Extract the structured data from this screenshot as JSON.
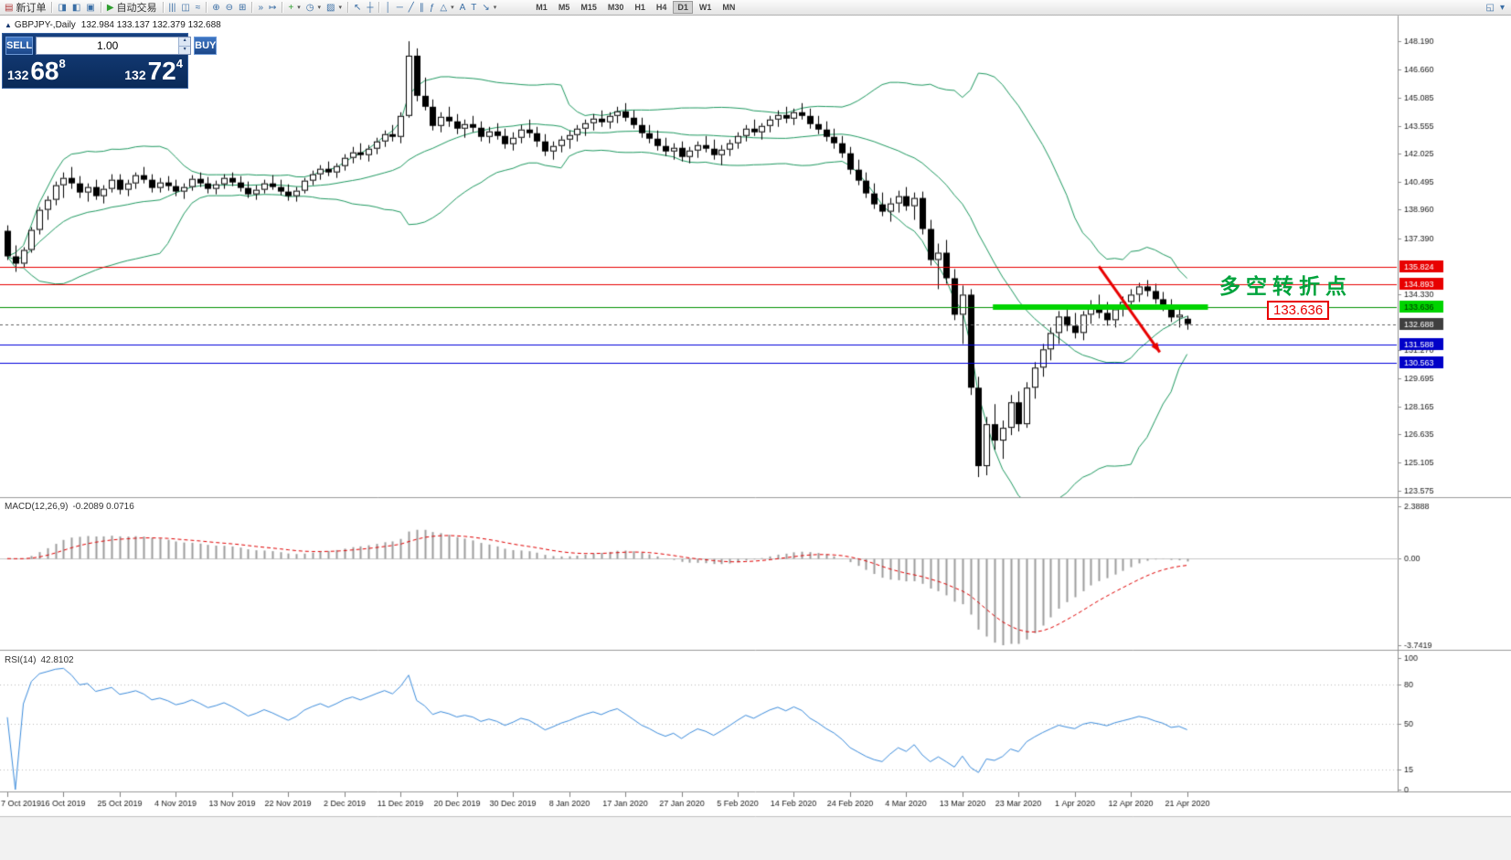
{
  "toolbar": {
    "groups": [
      [
        {
          "name": "new-order-button",
          "glyph": "▤",
          "color": "#b03838",
          "label": "新订单"
        }
      ],
      [
        {
          "name": "market-watch-button",
          "glyph": "◨"
        },
        {
          "name": "data-window-button",
          "glyph": "◧"
        },
        {
          "name": "terminal-button",
          "glyph": "▣"
        }
      ],
      [
        {
          "name": "autotrading-button",
          "glyph": "▶",
          "color": "#2f9e2f",
          "label": "自动交易"
        }
      ],
      [
        {
          "name": "chart-bars-button",
          "glyph": "|||"
        },
        {
          "name": "chart-candles-button",
          "glyph": "◫"
        },
        {
          "name": "chart-line-button",
          "glyph": "≈"
        }
      ],
      [
        {
          "name": "zoom-in-button",
          "glyph": "⊕"
        },
        {
          "name": "zoom-out-button",
          "glyph": "⊖"
        },
        {
          "name": "tile-windows-button",
          "glyph": "⊞"
        }
      ],
      [
        {
          "name": "auto-scroll-button",
          "glyph": "»"
        },
        {
          "name": "chart-shift-button",
          "glyph": "↦"
        }
      ],
      [
        {
          "name": "indicators-button",
          "glyph": "+",
          "color": "#2f9e2f",
          "dropdown": true
        },
        {
          "name": "periods-button",
          "glyph": "◷",
          "dropdown": true
        },
        {
          "name": "templates-button",
          "glyph": "▨",
          "dropdown": true
        }
      ],
      [
        {
          "name": "cursor-button",
          "glyph": "↖"
        },
        {
          "name": "crosshair-button",
          "glyph": "┼"
        }
      ],
      [
        {
          "name": "vertical-line-button",
          "glyph": "│"
        },
        {
          "name": "horizontal-line-button",
          "glyph": "─"
        },
        {
          "name": "trendline-button",
          "glyph": "╱"
        },
        {
          "name": "channel-button",
          "glyph": "∥"
        },
        {
          "name": "fibonacci-button",
          "glyph": "ƒ"
        },
        {
          "name": "shapes-button",
          "glyph": "△",
          "dropdown": true
        },
        {
          "name": "text-button",
          "glyph": "A"
        },
        {
          "name": "label-button",
          "glyph": "T"
        },
        {
          "name": "arrows-button",
          "glyph": "↘",
          "dropdown": true
        }
      ]
    ],
    "timeframes": [
      "M1",
      "M5",
      "M15",
      "M30",
      "H1",
      "H4",
      "D1",
      "W1",
      "MN"
    ],
    "active_timeframe": "D1",
    "right_items": [
      {
        "name": "chart-window-button",
        "glyph": "◱"
      },
      {
        "name": "toolbar-more-button",
        "glyph": "▾"
      }
    ]
  },
  "chart": {
    "symbol_title": "GBPJPY-,Daily",
    "ohlc_text": "132.984 133.137 132.379 132.688"
  },
  "trade_panel": {
    "sell_label": "SELL",
    "buy_label": "BUY",
    "volume": "1.00",
    "bid": {
      "prefix": "132",
      "big": "68",
      "sup": "8"
    },
    "ask": {
      "prefix": "132",
      "big": "72",
      "sup": "4"
    }
  },
  "annotations": {
    "turning_point_text": "多空转折点",
    "support_price_label": "133.636",
    "arrow": {
      "from_bar": 136,
      "from_price": 135.85,
      "to_bar": 143.6,
      "to_price": 131.15,
      "color": "#e80000"
    }
  },
  "chart_data": {
    "type": "candlestick",
    "symbol": "GBPJPY-",
    "timeframe": "Daily",
    "title": "GBPJPY-,Daily 132.984 133.137 132.379 132.688",
    "bars_per_label": 7,
    "x_labels": [
      "7 Oct 2019",
      "16 Oct 2019",
      "25 Oct 2019",
      "4 Nov 2019",
      "13 Nov 2019",
      "22 Nov 2019",
      "2 Dec 2019",
      "11 Dec 2019",
      "20 Dec 2019",
      "30 Dec 2019",
      "8 Jan 2020",
      "17 Jan 2020",
      "27 Jan 2020",
      "5 Feb 2020",
      "14 Feb 2020",
      "24 Feb 2020",
      "4 Mar 2020",
      "13 Mar 2020",
      "23 Mar 2020",
      "1 Apr 2020",
      "12 Apr 2020",
      "21 Apr 2020"
    ],
    "candles": [
      [
        137.8,
        138.1,
        136.2,
        136.4
      ],
      [
        136.4,
        137.0,
        135.55,
        136.0
      ],
      [
        136.0,
        136.9,
        135.8,
        136.75
      ],
      [
        136.75,
        138.0,
        136.6,
        137.85
      ],
      [
        137.85,
        139.1,
        137.6,
        138.95
      ],
      [
        138.95,
        139.7,
        138.4,
        139.5
      ],
      [
        139.5,
        140.5,
        139.2,
        140.3
      ],
      [
        140.3,
        141.0,
        139.6,
        140.7
      ],
      [
        140.7,
        141.3,
        140.1,
        140.4
      ],
      [
        140.4,
        140.8,
        139.6,
        139.9
      ],
      [
        139.9,
        140.4,
        139.4,
        140.2
      ],
      [
        140.2,
        140.6,
        139.5,
        139.7
      ],
      [
        139.7,
        140.3,
        139.3,
        140.1
      ],
      [
        140.1,
        140.9,
        139.9,
        140.6
      ],
      [
        140.6,
        140.9,
        139.8,
        140.05
      ],
      [
        140.05,
        140.6,
        139.7,
        140.4
      ],
      [
        140.4,
        141.0,
        140.1,
        140.85
      ],
      [
        140.85,
        141.3,
        140.4,
        140.6
      ],
      [
        140.6,
        140.9,
        139.9,
        140.15
      ],
      [
        140.15,
        140.7,
        139.9,
        140.45
      ],
      [
        140.45,
        140.8,
        140.0,
        140.25
      ],
      [
        140.25,
        140.6,
        139.7,
        139.95
      ],
      [
        139.95,
        140.4,
        139.55,
        140.2
      ],
      [
        140.2,
        140.85,
        140.0,
        140.65
      ],
      [
        140.65,
        141.0,
        140.2,
        140.4
      ],
      [
        140.4,
        140.75,
        139.85,
        140.1
      ],
      [
        140.1,
        140.55,
        139.8,
        140.35
      ],
      [
        140.35,
        140.9,
        140.1,
        140.7
      ],
      [
        140.7,
        141.0,
        140.25,
        140.45
      ],
      [
        140.45,
        140.8,
        139.95,
        140.15
      ],
      [
        140.15,
        140.5,
        139.6,
        139.8
      ],
      [
        139.8,
        140.3,
        139.5,
        140.05
      ],
      [
        140.05,
        140.6,
        139.85,
        140.4
      ],
      [
        140.4,
        140.85,
        140.05,
        140.2
      ],
      [
        140.2,
        140.6,
        139.75,
        139.95
      ],
      [
        139.95,
        140.35,
        139.45,
        139.7
      ],
      [
        139.7,
        140.2,
        139.4,
        140.0
      ],
      [
        140.0,
        140.7,
        139.85,
        140.55
      ],
      [
        140.55,
        141.1,
        140.3,
        140.9
      ],
      [
        140.9,
        141.4,
        140.6,
        141.2
      ],
      [
        141.2,
        141.6,
        140.8,
        141.0
      ],
      [
        141.0,
        141.5,
        140.7,
        141.35
      ],
      [
        141.35,
        142.0,
        141.1,
        141.8
      ],
      [
        141.8,
        142.4,
        141.5,
        142.1
      ],
      [
        142.1,
        142.6,
        141.7,
        141.95
      ],
      [
        141.95,
        142.5,
        141.6,
        142.3
      ],
      [
        142.3,
        142.9,
        142.0,
        142.7
      ],
      [
        142.7,
        143.3,
        142.4,
        143.1
      ],
      [
        143.1,
        143.6,
        142.7,
        142.95
      ],
      [
        142.95,
        144.3,
        142.6,
        144.1
      ],
      [
        144.1,
        148.19,
        144.0,
        147.4
      ],
      [
        147.4,
        147.8,
        144.9,
        145.2
      ],
      [
        145.2,
        146.2,
        144.4,
        144.6
      ],
      [
        144.6,
        145.0,
        143.3,
        143.55
      ],
      [
        143.55,
        144.3,
        143.2,
        144.05
      ],
      [
        144.05,
        144.6,
        143.5,
        143.8
      ],
      [
        143.8,
        144.2,
        143.1,
        143.4
      ],
      [
        143.4,
        143.9,
        142.9,
        143.65
      ],
      [
        143.65,
        144.1,
        143.2,
        143.45
      ],
      [
        143.45,
        143.8,
        142.7,
        142.95
      ],
      [
        142.95,
        143.5,
        142.6,
        143.25
      ],
      [
        143.25,
        143.7,
        142.8,
        143.0
      ],
      [
        143.0,
        143.4,
        142.3,
        142.55
      ],
      [
        142.55,
        143.2,
        142.2,
        142.9
      ],
      [
        142.9,
        143.6,
        142.6,
        143.35
      ],
      [
        143.35,
        143.9,
        142.9,
        143.15
      ],
      [
        143.15,
        143.5,
        142.4,
        142.7
      ],
      [
        142.7,
        143.1,
        141.9,
        142.15
      ],
      [
        142.15,
        142.7,
        141.7,
        142.45
      ],
      [
        142.45,
        143.0,
        142.1,
        142.8
      ],
      [
        142.8,
        143.3,
        142.3,
        143.05
      ],
      [
        143.05,
        143.6,
        142.7,
        143.4
      ],
      [
        143.4,
        143.9,
        143.0,
        143.7
      ],
      [
        143.7,
        144.2,
        143.3,
        143.95
      ],
      [
        143.95,
        144.4,
        143.5,
        143.75
      ],
      [
        143.75,
        144.3,
        143.4,
        144.1
      ],
      [
        144.1,
        144.6,
        143.7,
        144.35
      ],
      [
        144.35,
        144.8,
        143.8,
        144.0
      ],
      [
        144.0,
        144.4,
        143.4,
        143.6
      ],
      [
        143.6,
        144.0,
        142.9,
        143.15
      ],
      [
        143.15,
        143.6,
        142.6,
        142.85
      ],
      [
        142.85,
        143.3,
        142.2,
        142.45
      ],
      [
        142.45,
        142.9,
        141.9,
        142.15
      ],
      [
        142.15,
        142.6,
        141.7,
        142.35
      ],
      [
        142.35,
        142.7,
        141.6,
        141.85
      ],
      [
        141.85,
        142.4,
        141.5,
        142.2
      ],
      [
        142.2,
        142.7,
        141.8,
        142.5
      ],
      [
        142.5,
        143.0,
        142.1,
        142.3
      ],
      [
        142.3,
        142.8,
        141.7,
        141.95
      ],
      [
        141.95,
        142.5,
        141.4,
        142.25
      ],
      [
        142.25,
        142.8,
        141.9,
        142.6
      ],
      [
        142.6,
        143.2,
        142.3,
        143.0
      ],
      [
        143.0,
        143.6,
        142.7,
        143.4
      ],
      [
        143.4,
        143.9,
        143.0,
        143.2
      ],
      [
        143.2,
        143.7,
        142.8,
        143.55
      ],
      [
        143.55,
        144.1,
        143.2,
        143.9
      ],
      [
        143.9,
        144.4,
        143.5,
        144.15
      ],
      [
        144.15,
        144.6,
        143.7,
        143.95
      ],
      [
        143.95,
        144.5,
        143.6,
        144.3
      ],
      [
        144.3,
        144.8,
        143.9,
        144.1
      ],
      [
        144.1,
        144.5,
        143.4,
        143.65
      ],
      [
        143.65,
        144.1,
        143.1,
        143.35
      ],
      [
        143.35,
        143.8,
        142.7,
        142.95
      ],
      [
        142.95,
        143.4,
        142.3,
        142.6
      ],
      [
        142.6,
        143.0,
        141.8,
        142.05
      ],
      [
        142.05,
        142.4,
        140.9,
        141.15
      ],
      [
        141.15,
        141.7,
        140.3,
        140.55
      ],
      [
        140.55,
        141.0,
        139.6,
        139.85
      ],
      [
        139.85,
        140.4,
        139.0,
        139.25
      ],
      [
        139.25,
        139.9,
        138.6,
        138.85
      ],
      [
        138.85,
        139.6,
        138.3,
        139.3
      ],
      [
        139.3,
        140.0,
        138.8,
        139.7
      ],
      [
        139.7,
        140.2,
        138.9,
        139.15
      ],
      [
        139.15,
        139.9,
        138.4,
        139.6
      ],
      [
        139.6,
        139.95,
        137.6,
        137.9
      ],
      [
        137.9,
        138.4,
        135.9,
        136.2
      ],
      [
        136.2,
        137.1,
        134.6,
        136.6
      ],
      [
        136.6,
        137.3,
        134.9,
        135.2
      ],
      [
        135.2,
        135.7,
        132.9,
        133.2
      ],
      [
        133.2,
        134.8,
        131.6,
        134.3
      ],
      [
        134.3,
        134.6,
        128.8,
        129.2
      ],
      [
        129.2,
        129.8,
        124.3,
        124.9
      ],
      [
        124.9,
        127.6,
        124.4,
        127.2
      ],
      [
        127.2,
        128.3,
        125.8,
        126.3
      ],
      [
        126.3,
        127.4,
        125.3,
        127.0
      ],
      [
        127.0,
        128.8,
        126.6,
        128.4
      ],
      [
        128.4,
        129.0,
        126.8,
        127.2
      ],
      [
        127.2,
        129.5,
        127.0,
        129.2
      ],
      [
        129.2,
        130.6,
        128.6,
        130.3
      ],
      [
        130.3,
        131.6,
        129.8,
        131.3
      ],
      [
        131.3,
        132.5,
        130.7,
        132.2
      ],
      [
        132.2,
        133.4,
        131.6,
        133.1
      ],
      [
        133.1,
        133.7,
        132.3,
        132.6
      ],
      [
        132.6,
        133.3,
        131.9,
        132.2
      ],
      [
        132.2,
        133.4,
        131.8,
        133.2
      ],
      [
        133.2,
        134.0,
        132.7,
        133.6
      ],
      [
        133.6,
        134.3,
        133.0,
        133.3
      ],
      [
        133.3,
        133.9,
        132.6,
        132.9
      ],
      [
        132.9,
        133.7,
        132.5,
        133.5
      ],
      [
        133.5,
        134.2,
        133.1,
        133.9
      ],
      [
        133.9,
        134.6,
        133.4,
        134.3
      ],
      [
        134.3,
        134.95,
        133.9,
        134.75
      ],
      [
        134.75,
        135.1,
        134.2,
        134.5
      ],
      [
        134.5,
        134.9,
        133.8,
        134.05
      ],
      [
        134.05,
        134.45,
        133.4,
        133.7
      ],
      [
        133.7,
        134.05,
        132.8,
        133.05
      ],
      [
        133.05,
        133.5,
        132.5,
        133.2
      ],
      [
        132.98,
        133.14,
        132.38,
        132.69
      ]
    ],
    "price_axis": {
      "tick_labels": [
        "148.190",
        "146.660",
        "145.085",
        "143.555",
        "142.025",
        "140.495",
        "138.960",
        "137.390",
        "134.330",
        "131.270",
        "129.695",
        "128.165",
        "126.635",
        "125.105",
        "123.575"
      ]
    },
    "hlines": [
      {
        "price": 135.824,
        "label": "135.824",
        "color": "#e80000",
        "label_bg": "#e80000",
        "label_fg": "#ffffff"
      },
      {
        "price": 134.893,
        "label": "134.893",
        "color": "#e80000",
        "label_bg": "#e80000",
        "label_fg": "#ffffff"
      },
      {
        "price": 133.636,
        "label": "133.636",
        "color": "#009000",
        "label_bg": "#00d400",
        "label_fg": "#002b00"
      },
      {
        "price": 132.688,
        "label": "132.688",
        "color": "#606060",
        "dash": true,
        "label_bg": "#3f3f3f",
        "label_fg": "#ffffff"
      },
      {
        "price": 131.588,
        "label": "131.588",
        "color": "#0000dc",
        "label_bg": "#0000c8",
        "label_fg": "#ffffff"
      },
      {
        "price": 130.563,
        "label": "130.563",
        "color": "#0000dc",
        "label_bg": "#0000c8",
        "label_fg": "#ffffff"
      }
    ],
    "support_zone": {
      "price": 133.636,
      "from_bar": 122.8,
      "to_bar": 149.6,
      "color": "#00d400",
      "thickness": 6
    },
    "colors": {
      "bollinger": "#1e9960",
      "candle_up": "#ffffff",
      "candle_down": "#000000",
      "candle_border": "#000000",
      "macd_hist": "#9c9c9c",
      "macd_signal": "#e00000",
      "rsi_line": "#3c8cdc"
    },
    "indicators": {
      "bollinger": {
        "name": "Bollinger Bands",
        "period": 20,
        "deviation": 2
      },
      "macd": {
        "name": "MACD(12,26,9)",
        "values_text": "-0.2089 0.0716",
        "scale_top": "2.3888",
        "scale_zero": "0.00",
        "scale_bottom": "-3.7419"
      },
      "rsi": {
        "name": "RSI(14)",
        "value_text": "42.8102",
        "levels": [
          80,
          50,
          15
        ],
        "scale_labels": [
          "100",
          "80",
          "50",
          "15",
          "0"
        ]
      }
    }
  }
}
